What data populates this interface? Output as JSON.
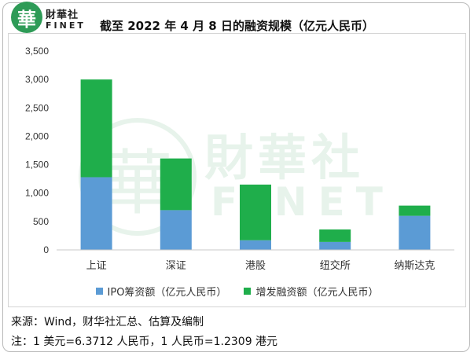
{
  "brand": {
    "seal_char": "華",
    "name_cn": "財華社",
    "name_en": "FINET"
  },
  "colors": {
    "ipo": "#5b9bd5",
    "follow_on": "#1fae4b"
  },
  "chart_data": {
    "type": "bar",
    "stacked": true,
    "title": "截至 2022 年 4 月 8 日的融资规模（亿元人民币）",
    "categories": [
      "上证",
      "深证",
      "港股",
      "纽交所",
      "纳斯达克"
    ],
    "series": [
      {
        "name": "IPO筹资额（亿元人民币）",
        "values": [
          1280,
          700,
          170,
          140,
          600
        ]
      },
      {
        "name": "增发融资额（亿元人民币）",
        "values": [
          1720,
          910,
          980,
          220,
          180
        ]
      }
    ],
    "ylim": [
      0,
      3500
    ],
    "yticks": [
      "0",
      "500",
      "1,000",
      "1,500",
      "2,000",
      "2,500",
      "3,000",
      "3,500"
    ],
    "grid": false,
    "legend_position": "bottom"
  },
  "footer": {
    "source": "来源：Wind，财华社汇总、估算及编制",
    "note": "注：1 美元=6.3712 人民币，1 人民币=1.2309 港元"
  }
}
